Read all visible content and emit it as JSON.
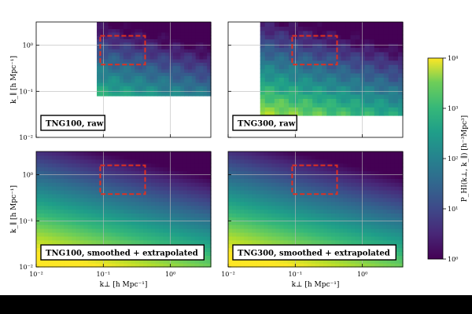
{
  "figure": {
    "description_label": "2D HI power spectrum P_HI(k_perp, k_par) for TNG100 and TNG300"
  },
  "chart_data": [
    {
      "type": "heatmap",
      "panel": "top-left",
      "label": "TNG100, raw",
      "xscale": "log",
      "yscale": "log",
      "xlim": [
        0.01,
        4
      ],
      "ylim": [
        0.01,
        3.2
      ],
      "data_region": {
        "kperp": [
          0.08,
          4
        ],
        "kpar": [
          0.08,
          3.2
        ]
      },
      "ylabel": "k_∥ [h Mpc⁻¹]",
      "xticks": [],
      "yticks": [
        "10⁻²",
        "10⁻¹",
        "10⁰"
      ],
      "highlight_box": {
        "kperp": [
          0.09,
          0.42
        ],
        "kpar": [
          0.38,
          1.6
        ],
        "color": "#e03020",
        "style": "dashed"
      }
    },
    {
      "type": "heatmap",
      "panel": "top-right",
      "label": "TNG300, raw",
      "xscale": "log",
      "yscale": "log",
      "xlim": [
        0.01,
        4
      ],
      "ylim": [
        0.01,
        3.2
      ],
      "data_region": {
        "kperp": [
          0.03,
          4
        ],
        "kpar": [
          0.03,
          3.2
        ]
      },
      "xticks": [],
      "yticks": [],
      "highlight_box": {
        "kperp": [
          0.09,
          0.42
        ],
        "kpar": [
          0.38,
          1.6
        ],
        "color": "#e03020",
        "style": "dashed"
      }
    },
    {
      "type": "heatmap",
      "panel": "bottom-left",
      "label": "TNG100, smoothed + extrapolated",
      "xscale": "log",
      "yscale": "log",
      "xlim": [
        0.01,
        4
      ],
      "ylim": [
        0.01,
        3.2
      ],
      "data_region": {
        "kperp": [
          0.01,
          4
        ],
        "kpar": [
          0.01,
          3.2
        ]
      },
      "xlabel": "k⊥ [h Mpc⁻¹]",
      "ylabel": "k_∥ [h Mpc⁻¹]",
      "xticks": [
        "10⁻²",
        "10⁻¹",
        "10⁰"
      ],
      "yticks": [
        "10⁻²",
        "10⁻¹",
        "10⁰"
      ],
      "highlight_box": {
        "kperp": [
          0.09,
          0.42
        ],
        "kpar": [
          0.38,
          1.6
        ],
        "color": "#e03020",
        "style": "dashed"
      }
    },
    {
      "type": "heatmap",
      "panel": "bottom-right",
      "label": "TNG300, smoothed + extrapolated",
      "xscale": "log",
      "yscale": "log",
      "xlim": [
        0.01,
        4
      ],
      "ylim": [
        0.01,
        3.2
      ],
      "data_region": {
        "kperp": [
          0.01,
          4
        ],
        "kpar": [
          0.01,
          3.2
        ]
      },
      "xlabel": "k⊥ [h Mpc⁻¹]",
      "xticks": [
        "10⁻²",
        "10⁻¹",
        "10⁰"
      ],
      "yticks": [],
      "highlight_box": {
        "kperp": [
          0.09,
          0.42
        ],
        "kpar": [
          0.38,
          1.6
        ],
        "color": "#e03020",
        "style": "dashed"
      }
    }
  ],
  "colorbar": {
    "scale": "log",
    "range": [
      1,
      10000
    ],
    "ticks": [
      "10⁰",
      "10¹",
      "10²",
      "10³",
      "10⁴"
    ],
    "label": "P_HI(k⊥, k_∥) [h⁻³Mpc³]",
    "colormap": "viridis"
  },
  "colors": {
    "background": "#000000",
    "box": "#e03020",
    "grid": "#bbbbbb"
  }
}
